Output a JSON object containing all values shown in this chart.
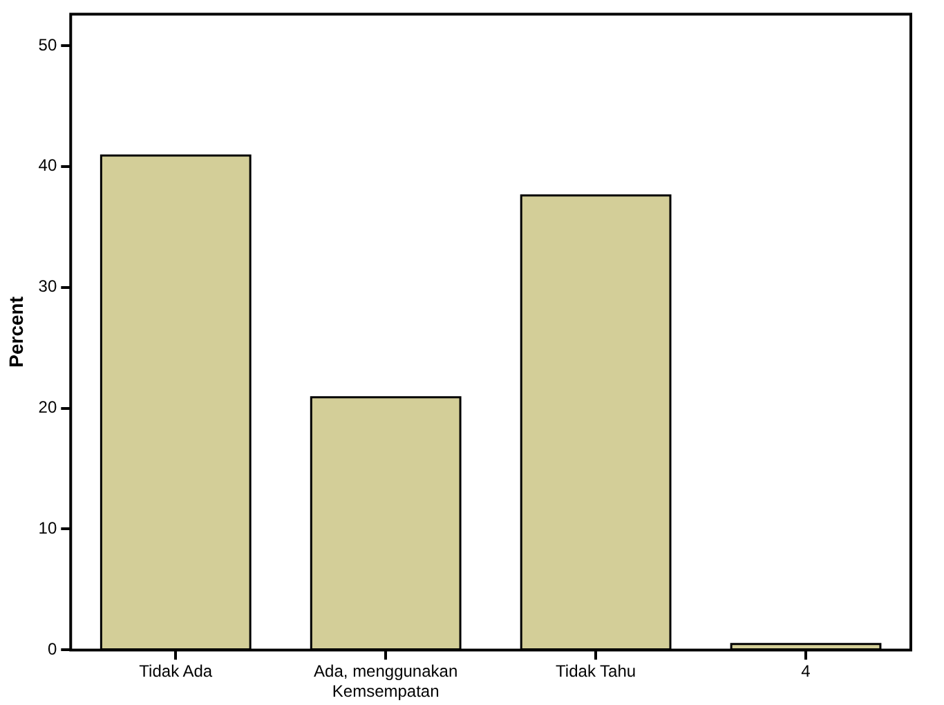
{
  "chart_data": {
    "type": "bar",
    "ylabel": "Percent",
    "categories": [
      "Tidak Ada",
      "Ada, menggunakan Kemsempatan",
      "Tidak Tahu",
      "4"
    ],
    "values": [
      40.9,
      20.9,
      37.6,
      0.5
    ],
    "color": "#d3ce98",
    "ylim": [
      0,
      52.6
    ],
    "yticks": [
      0,
      10,
      20,
      30,
      40,
      50
    ],
    "grid": false,
    "legend": false
  }
}
